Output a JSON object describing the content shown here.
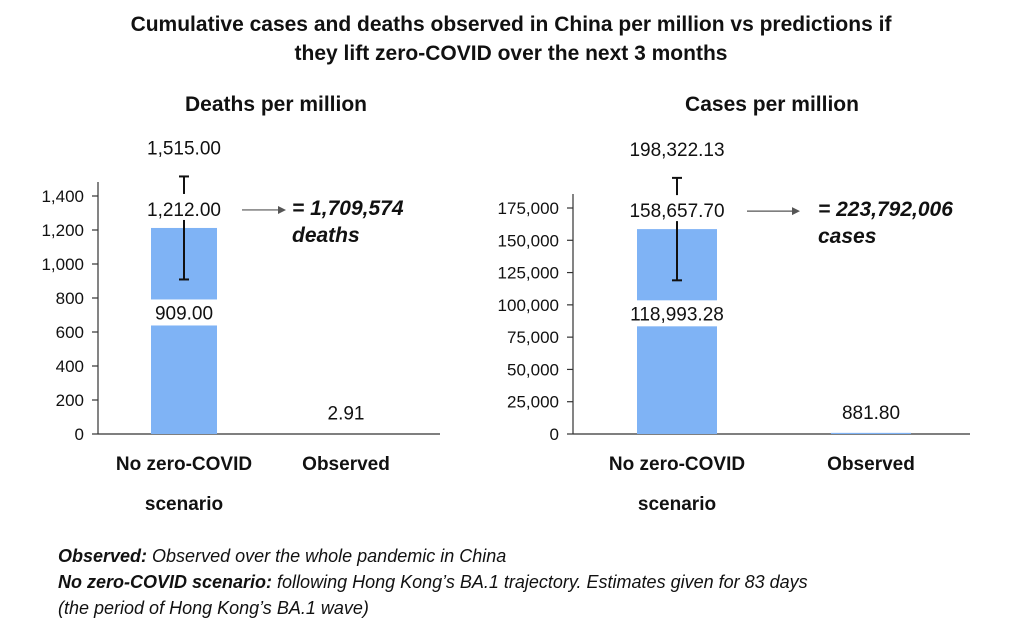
{
  "title_lines": [
    "Cumulative cases and deaths observed in China per million vs predictions if",
    "they lift zero-COVID over the next 3 months"
  ],
  "chart_data": [
    {
      "type": "bar",
      "title": "Deaths per million",
      "categories": [
        "No zero-COVID scenario",
        "Observed"
      ],
      "category_lines": [
        [
          "No zero-COVID",
          "scenario"
        ],
        [
          "Observed"
        ]
      ],
      "values": [
        1212.0,
        2.91
      ],
      "value_labels": [
        "1,212.00",
        "2.91"
      ],
      "error_bar": {
        "category": "No zero-COVID scenario",
        "low": 909.0,
        "high": 1515.0,
        "low_label": "909.00",
        "high_label": "1,515.00"
      },
      "ylim": [
        0,
        1400
      ],
      "yticks": [
        0,
        200,
        400,
        600,
        800,
        1000,
        1200,
        1400
      ],
      "ytick_labels": [
        "0",
        "200",
        "400",
        "600",
        "800",
        "1,000",
        "1,200",
        "1,400"
      ],
      "annotation_lines": [
        "= 1,709,574",
        "deaths"
      ],
      "bar_color": "#7fb3f5"
    },
    {
      "type": "bar",
      "title": "Cases per million",
      "categories": [
        "No zero-COVID scenario",
        "Observed"
      ],
      "category_lines": [
        [
          "No zero-COVID",
          "scenario"
        ],
        [
          "Observed"
        ]
      ],
      "values": [
        158657.7,
        881.8
      ],
      "value_labels": [
        "158,657.70",
        "881.80"
      ],
      "error_bar": {
        "category": "No zero-COVID scenario",
        "low": 118993.28,
        "high": 198322.13,
        "low_label": "118,993.28",
        "high_label": "198,322.13"
      },
      "ylim": [
        0,
        175000
      ],
      "yticks": [
        0,
        25000,
        50000,
        75000,
        100000,
        125000,
        150000,
        175000
      ],
      "ytick_labels": [
        "0",
        "25,000",
        "50,000",
        "75,000",
        "100,000",
        "125,000",
        "150,000",
        "175,000"
      ],
      "annotation_lines": [
        "= 223,792,006",
        "cases"
      ],
      "bar_color": "#7fb3f5"
    }
  ],
  "notes": {
    "observed_label": "Observed:",
    "observed_text": " Observed over the whole pandemic in China",
    "scenario_label": "No zero-COVID scenario:",
    "scenario_text": " following Hong Kong’s BA.1 trajectory. Estimates given for 83 days",
    "scenario_text_2": "(the period of Hong Kong’s BA.1 wave)"
  }
}
